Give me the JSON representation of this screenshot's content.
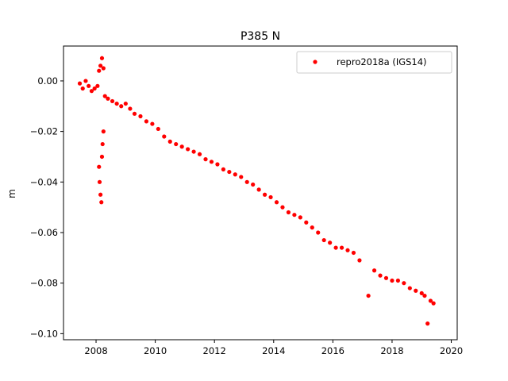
{
  "chart_data": {
    "type": "scatter",
    "title": "P385 N",
    "xlabel": "",
    "ylabel": "m",
    "xlim": [
      2006.9,
      2020.2
    ],
    "ylim": [
      -0.1024,
      0.0138
    ],
    "xticks": [
      2008,
      2010,
      2012,
      2014,
      2016,
      2018,
      2020
    ],
    "xtick_labels": [
      "2008",
      "2010",
      "2012",
      "2014",
      "2016",
      "2018",
      "2020"
    ],
    "yticks": [
      0.0,
      -0.02,
      -0.04,
      -0.06,
      -0.08,
      -0.1
    ],
    "ytick_labels": [
      "0.00",
      "−0.02",
      "−0.04",
      "−0.06",
      "−0.08",
      "−0.10"
    ],
    "grid": false,
    "legend_position": "top-right",
    "marker_color": "#ff0000",
    "series": [
      {
        "name": "repro2018a (IGS14)",
        "color": "#ff0000",
        "points": [
          [
            2007.45,
            -0.001
          ],
          [
            2007.55,
            -0.003
          ],
          [
            2007.65,
            0.0
          ],
          [
            2007.75,
            -0.002
          ],
          [
            2007.85,
            -0.004
          ],
          [
            2007.95,
            -0.003
          ],
          [
            2008.05,
            -0.002
          ],
          [
            2008.1,
            0.004
          ],
          [
            2008.15,
            0.006
          ],
          [
            2008.2,
            0.009
          ],
          [
            2008.25,
            0.005
          ],
          [
            2008.3,
            -0.006
          ],
          [
            2008.4,
            -0.007
          ],
          [
            2008.55,
            -0.008
          ],
          [
            2008.7,
            -0.009
          ],
          [
            2008.85,
            -0.01
          ],
          [
            2009.0,
            -0.009
          ],
          [
            2009.15,
            -0.011
          ],
          [
            2009.3,
            -0.013
          ],
          [
            2009.5,
            -0.014
          ],
          [
            2009.7,
            -0.016
          ],
          [
            2009.9,
            -0.017
          ],
          [
            2010.1,
            -0.019
          ],
          [
            2010.3,
            -0.022
          ],
          [
            2010.5,
            -0.024
          ],
          [
            2010.7,
            -0.025
          ],
          [
            2010.9,
            -0.026
          ],
          [
            2011.1,
            -0.027
          ],
          [
            2011.3,
            -0.028
          ],
          [
            2011.5,
            -0.029
          ],
          [
            2011.7,
            -0.031
          ],
          [
            2011.9,
            -0.032
          ],
          [
            2012.1,
            -0.033
          ],
          [
            2012.3,
            -0.035
          ],
          [
            2012.5,
            -0.036
          ],
          [
            2012.7,
            -0.037
          ],
          [
            2012.9,
            -0.038
          ],
          [
            2013.1,
            -0.04
          ],
          [
            2013.3,
            -0.041
          ],
          [
            2013.5,
            -0.043
          ],
          [
            2013.7,
            -0.045
          ],
          [
            2013.9,
            -0.046
          ],
          [
            2014.1,
            -0.048
          ],
          [
            2014.3,
            -0.05
          ],
          [
            2014.5,
            -0.052
          ],
          [
            2014.7,
            -0.053
          ],
          [
            2014.9,
            -0.054
          ],
          [
            2015.1,
            -0.056
          ],
          [
            2015.3,
            -0.058
          ],
          [
            2015.5,
            -0.06
          ],
          [
            2015.7,
            -0.063
          ],
          [
            2015.9,
            -0.064
          ],
          [
            2016.1,
            -0.066
          ],
          [
            2016.3,
            -0.066
          ],
          [
            2016.5,
            -0.067
          ],
          [
            2016.7,
            -0.068
          ],
          [
            2016.9,
            -0.071
          ],
          [
            2017.2,
            -0.085
          ],
          [
            2017.4,
            -0.075
          ],
          [
            2017.6,
            -0.077
          ],
          [
            2017.8,
            -0.078
          ],
          [
            2018.0,
            -0.079
          ],
          [
            2018.2,
            -0.079
          ],
          [
            2018.4,
            -0.08
          ],
          [
            2018.6,
            -0.082
          ],
          [
            2018.8,
            -0.083
          ],
          [
            2019.0,
            -0.084
          ],
          [
            2019.1,
            -0.085
          ],
          [
            2019.2,
            -0.096
          ],
          [
            2019.3,
            -0.087
          ],
          [
            2019.4,
            -0.088
          ],
          [
            2008.1,
            -0.034
          ],
          [
            2008.12,
            -0.04
          ],
          [
            2008.15,
            -0.045
          ],
          [
            2008.18,
            -0.048
          ],
          [
            2008.2,
            -0.03
          ],
          [
            2008.22,
            -0.025
          ],
          [
            2008.25,
            -0.02
          ]
        ]
      }
    ]
  }
}
